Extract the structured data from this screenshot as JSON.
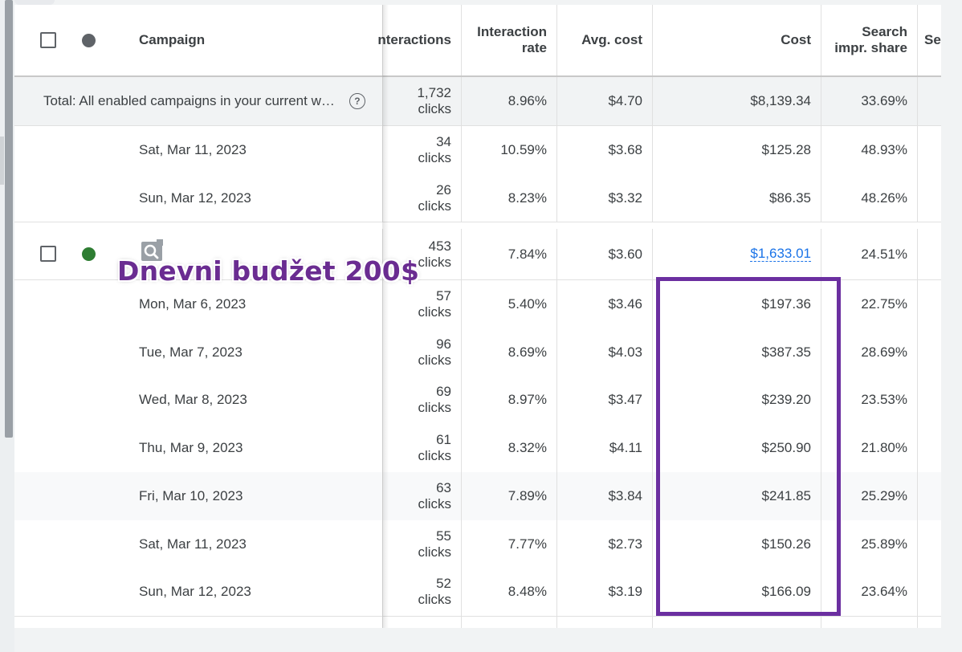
{
  "header": {
    "campaign": "Campaign",
    "interactions": "nteractions",
    "interaction_rate_l1": "Interaction",
    "interaction_rate_l2": "rate",
    "avg_cost": "Avg. cost",
    "cost": "Cost",
    "search_share_l1": "Search",
    "search_share_l2": "impr. share",
    "extra": "Se"
  },
  "total": {
    "label": "Total: All enabled campaigns in your current w…",
    "help_icon": "help-circle-icon",
    "interactions_value": "1,732",
    "interactions_unit": "clicks",
    "rate": "8.96%",
    "avg_cost": "$4.70",
    "cost": "$8,139.34",
    "search_share": "33.69%"
  },
  "group1_rows": [
    {
      "date": "Sat, Mar 11, 2023",
      "interactions": "34",
      "unit": "clicks",
      "rate": "10.59%",
      "avg_cost": "$3.68",
      "cost": "$125.28",
      "share": "48.93%"
    },
    {
      "date": "Sun, Mar 12, 2023",
      "interactions": "26",
      "unit": "clicks",
      "rate": "8.23%",
      "avg_cost": "$3.32",
      "cost": "$86.35",
      "share": "48.26%"
    }
  ],
  "campaign": {
    "status_color": "#2e7d32",
    "icon": "search-campaign-icon",
    "interactions": "453",
    "unit": "clicks",
    "rate": "7.84%",
    "avg_cost": "$3.60",
    "cost": "$1,633.01",
    "share": "24.51%"
  },
  "group2_rows": [
    {
      "date": "Mon, Mar 6, 2023",
      "interactions": "57",
      "unit": "clicks",
      "rate": "5.40%",
      "avg_cost": "$3.46",
      "cost": "$197.36",
      "share": "22.75%"
    },
    {
      "date": "Tue, Mar 7, 2023",
      "interactions": "96",
      "unit": "clicks",
      "rate": "8.69%",
      "avg_cost": "$4.03",
      "cost": "$387.35",
      "share": "28.69%"
    },
    {
      "date": "Wed, Mar 8, 2023",
      "interactions": "69",
      "unit": "clicks",
      "rate": "8.97%",
      "avg_cost": "$3.47",
      "cost": "$239.20",
      "share": "23.53%"
    },
    {
      "date": "Thu, Mar 9, 2023",
      "interactions": "61",
      "unit": "clicks",
      "rate": "8.32%",
      "avg_cost": "$4.11",
      "cost": "$250.90",
      "share": "21.80%"
    },
    {
      "date": "Fri, Mar 10, 2023",
      "interactions": "63",
      "unit": "clicks",
      "rate": "7.89%",
      "avg_cost": "$3.84",
      "cost": "$241.85",
      "share": "25.29%"
    },
    {
      "date": "Sat, Mar 11, 2023",
      "interactions": "55",
      "unit": "clicks",
      "rate": "7.77%",
      "avg_cost": "$2.73",
      "cost": "$150.26",
      "share": "25.89%"
    },
    {
      "date": "Sun, Mar 12, 2023",
      "interactions": "52",
      "unit": "clicks",
      "rate": "8.48%",
      "avg_cost": "$3.19",
      "cost": "$166.09",
      "share": "23.64%"
    }
  ],
  "overlay": {
    "label": "Dnevni budžet 200$",
    "color": "#6b2fa0"
  },
  "colors": {
    "header_dot": "#5f6368",
    "link": "#1a73e8"
  }
}
